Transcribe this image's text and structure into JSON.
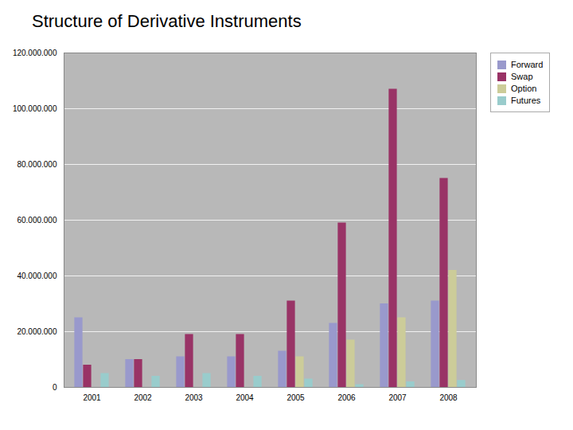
{
  "chart_data": {
    "type": "bar",
    "title": "Structure of Derivative Instruments",
    "categories": [
      "2001",
      "2002",
      "2003",
      "2004",
      "2005",
      "2006",
      "2007",
      "2008"
    ],
    "series": [
      {
        "name": "Forward",
        "color": "#9999cc",
        "values": [
          25000000,
          10000000,
          11000000,
          11000000,
          13000000,
          23000000,
          30000000,
          31000000
        ]
      },
      {
        "name": "Swap",
        "color": "#993366",
        "values": [
          8000000,
          10000000,
          19000000,
          19000000,
          31000000,
          59000000,
          107000000,
          75000000
        ]
      },
      {
        "name": "Option",
        "color": "#cccc99",
        "values": [
          0,
          0,
          0,
          0,
          11000000,
          17000000,
          25000000,
          42000000
        ]
      },
      {
        "name": "Futures",
        "color": "#99cccc",
        "values": [
          5000000,
          4000000,
          5000000,
          4000000,
          3000000,
          1000000,
          2000000,
          2500000
        ]
      }
    ],
    "ylim": [
      0,
      120000000
    ],
    "yticks": [
      0,
      {
        "value": 20000000,
        "label": "20.000.000"
      },
      {
        "value": 40000000,
        "label": "40.000.000"
      },
      {
        "value": 60000000,
        "label": "60.000.000"
      },
      {
        "value": 80000000,
        "label": "80.000.000"
      },
      {
        "value": 100000000,
        "label": "100.000.000"
      },
      {
        "value": 120000000,
        "label": "120.000.000"
      }
    ],
    "grid": true,
    "legend": "right"
  }
}
